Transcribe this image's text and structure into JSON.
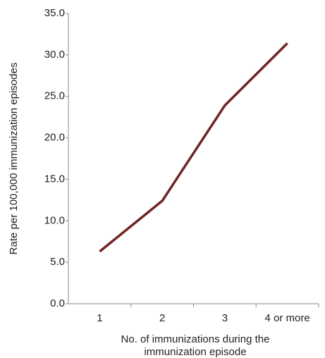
{
  "chart_data": {
    "type": "line",
    "ylabel": "Rate per 100,000 immunization episodes",
    "xlabel": [
      "No. of immunizations during the",
      "immunization episode"
    ],
    "categories": [
      "1",
      "2",
      "3",
      "4 or more"
    ],
    "series": [
      {
        "color": "#722424",
        "values": [
          6.3,
          12.4,
          23.9,
          31.4
        ]
      }
    ],
    "ylim": [
      0,
      35
    ],
    "yticks": [
      {
        "value": 0,
        "label": "0.0"
      },
      {
        "value": 5,
        "label": "5.0"
      },
      {
        "value": 10,
        "label": "10.0"
      },
      {
        "value": 15,
        "label": "15.0"
      },
      {
        "value": 20,
        "label": "20.0"
      },
      {
        "value": 25,
        "label": "25.0"
      },
      {
        "value": 30,
        "label": "30.0"
      },
      {
        "value": 35,
        "label": "35.0"
      }
    ],
    "grid": false
  }
}
